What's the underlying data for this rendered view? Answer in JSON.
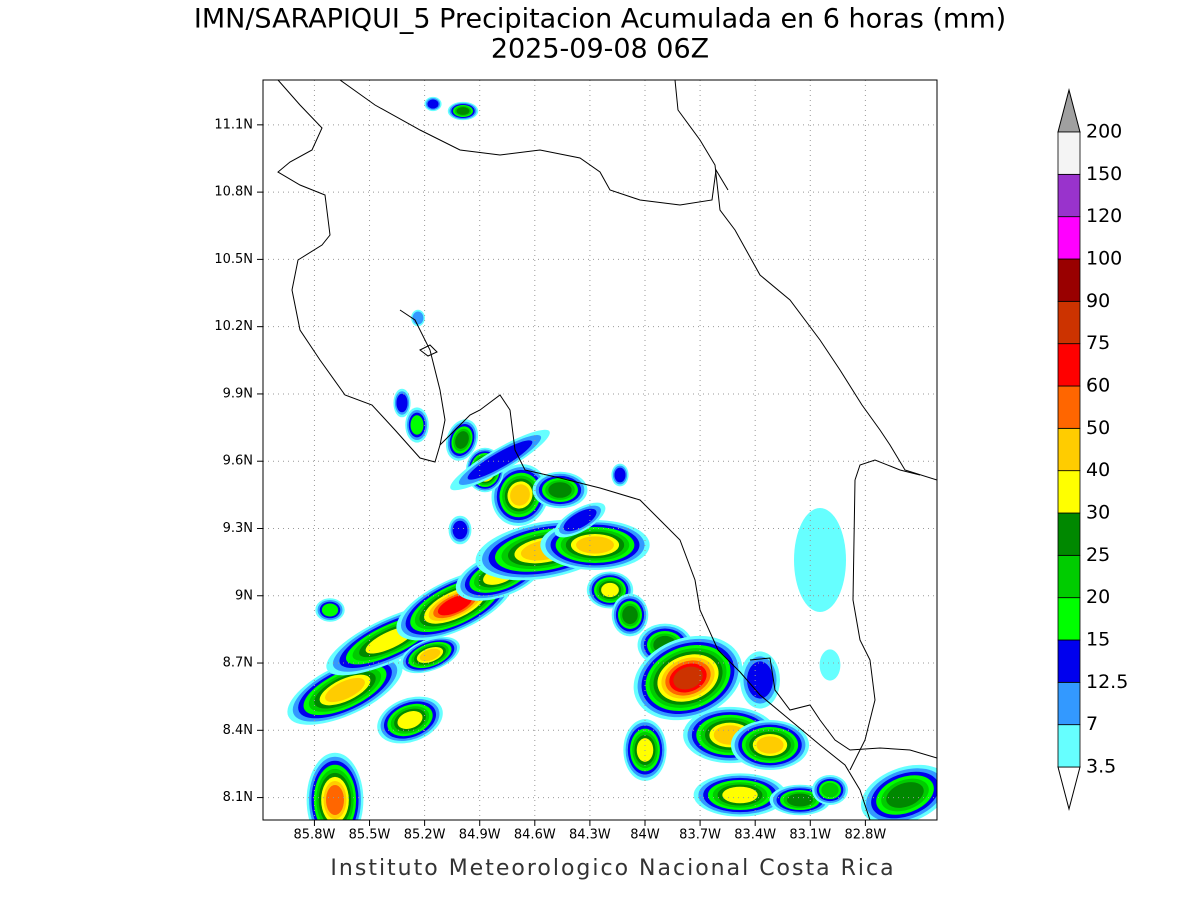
{
  "map": {
    "title": "IMN/SARAPIQUI_5 Precipitacion Acumulada en 6 horas (mm)",
    "subtitle": "2025-09-08 06Z",
    "footer": "Instituto Meteorologico Nacional Costa Rica",
    "xlim": [
      -86.08,
      -82.41
    ],
    "ylim": [
      8.0,
      11.3
    ],
    "xticks": [
      {
        "value": -85.8,
        "label": "85.8W"
      },
      {
        "value": -85.5,
        "label": "85.5W"
      },
      {
        "value": -85.2,
        "label": "85.2W"
      },
      {
        "value": -84.9,
        "label": "84.9W"
      },
      {
        "value": -84.6,
        "label": "84.6W"
      },
      {
        "value": -84.3,
        "label": "84.3W"
      },
      {
        "value": -84.0,
        "label": "84W"
      },
      {
        "value": -83.7,
        "label": "83.7W"
      },
      {
        "value": -83.4,
        "label": "83.4W"
      },
      {
        "value": -83.1,
        "label": "83.1W"
      },
      {
        "value": -82.8,
        "label": "82.8W"
      }
    ],
    "yticks": [
      {
        "value": 8.1,
        "label": "8.1N"
      },
      {
        "value": 8.4,
        "label": "8.4N"
      },
      {
        "value": 8.7,
        "label": "8.7N"
      },
      {
        "value": 9.0,
        "label": "9N"
      },
      {
        "value": 9.3,
        "label": "9.3N"
      },
      {
        "value": 9.6,
        "label": "9.6N"
      },
      {
        "value": 9.9,
        "label": "9.9N"
      },
      {
        "value": 10.2,
        "label": "10.2N"
      },
      {
        "value": 10.5,
        "label": "10.5N"
      },
      {
        "value": 10.8,
        "label": "10.8N"
      },
      {
        "value": 11.1,
        "label": "11.1N"
      }
    ],
    "grid": true,
    "colorbar": {
      "levels": [
        3.5,
        7,
        12.5,
        15,
        20,
        25,
        30,
        40,
        50,
        60,
        75,
        90,
        100,
        120,
        150,
        200
      ],
      "colors": [
        "#66ffff",
        "#3399ff",
        "#0000ee",
        "#00ff00",
        "#00cc00",
        "#008800",
        "#ffff00",
        "#ffcc00",
        "#ff6600",
        "#ff0000",
        "#cc3300",
        "#990000",
        "#ff00ff",
        "#9933cc",
        "#f4f4f4"
      ],
      "under_color": "#ffffff",
      "over_color": "#a0a0a0"
    }
  }
}
